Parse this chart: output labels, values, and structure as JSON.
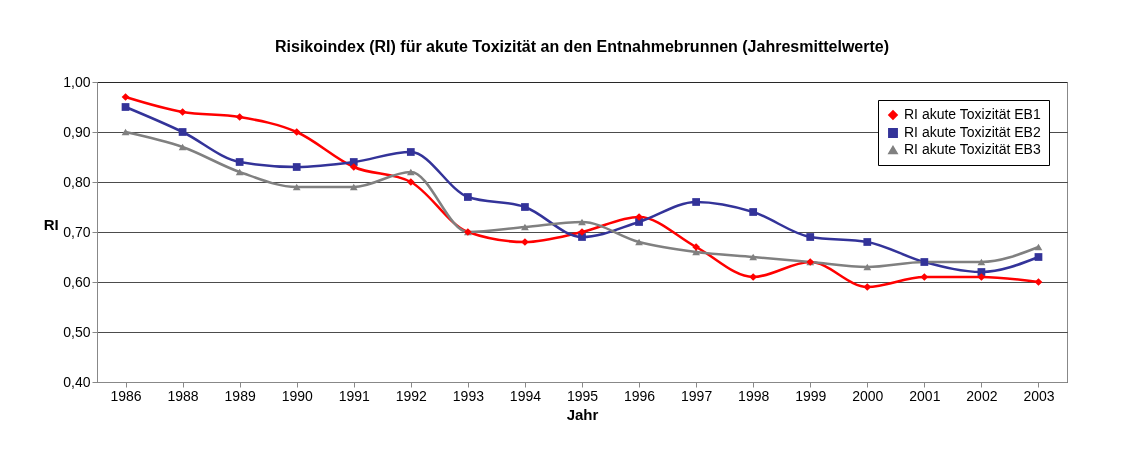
{
  "chart_data": {
    "type": "line",
    "title": "Risikoindex (RI) für akute Toxizität an den Entnahmebrunnen (Jahresmittelwerte)",
    "xlabel": "Jahr",
    "ylabel": "RI",
    "categories": [
      "1986",
      "1988",
      "1989",
      "1990",
      "1991",
      "1992",
      "1993",
      "1994",
      "1995",
      "1996",
      "1997",
      "1998",
      "1999",
      "2000",
      "2001",
      "2002",
      "2003"
    ],
    "series": [
      {
        "name": "RI akute Toxizität EB1",
        "color": "#ff0000",
        "marker": "diamond",
        "values": [
          0.97,
          0.94,
          0.93,
          0.9,
          0.83,
          0.8,
          0.7,
          0.68,
          0.7,
          0.73,
          0.67,
          0.61,
          0.64,
          0.59,
          0.61,
          0.61,
          0.6
        ]
      },
      {
        "name": "RI akute Toxizität EB2",
        "color": "#333399",
        "marker": "square",
        "values": [
          0.95,
          0.9,
          0.84,
          0.83,
          0.84,
          0.86,
          0.77,
          0.75,
          0.69,
          0.72,
          0.76,
          0.74,
          0.69,
          0.68,
          0.64,
          0.62,
          0.65
        ]
      },
      {
        "name": "RI akute Toxizität EB3",
        "color": "#808080",
        "marker": "triangle",
        "values": [
          0.9,
          0.87,
          0.82,
          0.79,
          0.79,
          0.82,
          0.7,
          0.71,
          0.72,
          0.68,
          0.66,
          0.65,
          0.64,
          0.63,
          0.64,
          0.64,
          0.67
        ]
      }
    ],
    "ylim": [
      0.4,
      1.0
    ],
    "yticks": [
      {
        "value": 0.4,
        "label": "0,40"
      },
      {
        "value": 0.5,
        "label": "0,50"
      },
      {
        "value": 0.6,
        "label": "0,60"
      },
      {
        "value": 0.7,
        "label": "0,70"
      },
      {
        "value": 0.8,
        "label": "0,80"
      },
      {
        "value": 0.9,
        "label": "0,90"
      },
      {
        "value": 1.0,
        "label": "1,00"
      }
    ],
    "grid": "y",
    "legend": "top right",
    "line_style": "solid"
  }
}
